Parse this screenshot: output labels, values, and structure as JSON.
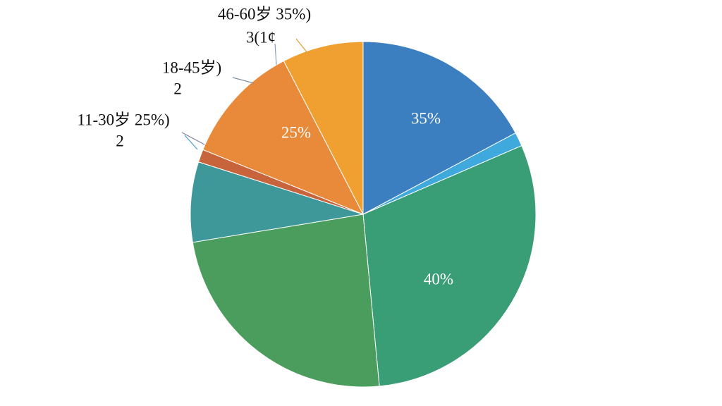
{
  "chart_data": {
    "type": "pie",
    "values": [
      17.2,
      1.3,
      30,
      23.9,
      7.5,
      1.2,
      11.3,
      7.6
    ],
    "colors": [
      "#3c7fc1",
      "#3fa8dc",
      "#399d76",
      "#4a9d5c",
      "#3e989a",
      "#c8643c",
      "#e98a3a",
      "#efa031"
    ],
    "annotations": [
      {
        "text": "35%"
      },
      {
        "text": "25%"
      },
      {
        "text": "40%"
      },
      {
        "text": "46-60岁 35%)"
      },
      {
        "text": "3(1¢"
      },
      {
        "text": "18-45岁)"
      },
      {
        "text": "2"
      },
      {
        "text": "11-30岁 25%)"
      },
      {
        "text": "2"
      }
    ]
  }
}
